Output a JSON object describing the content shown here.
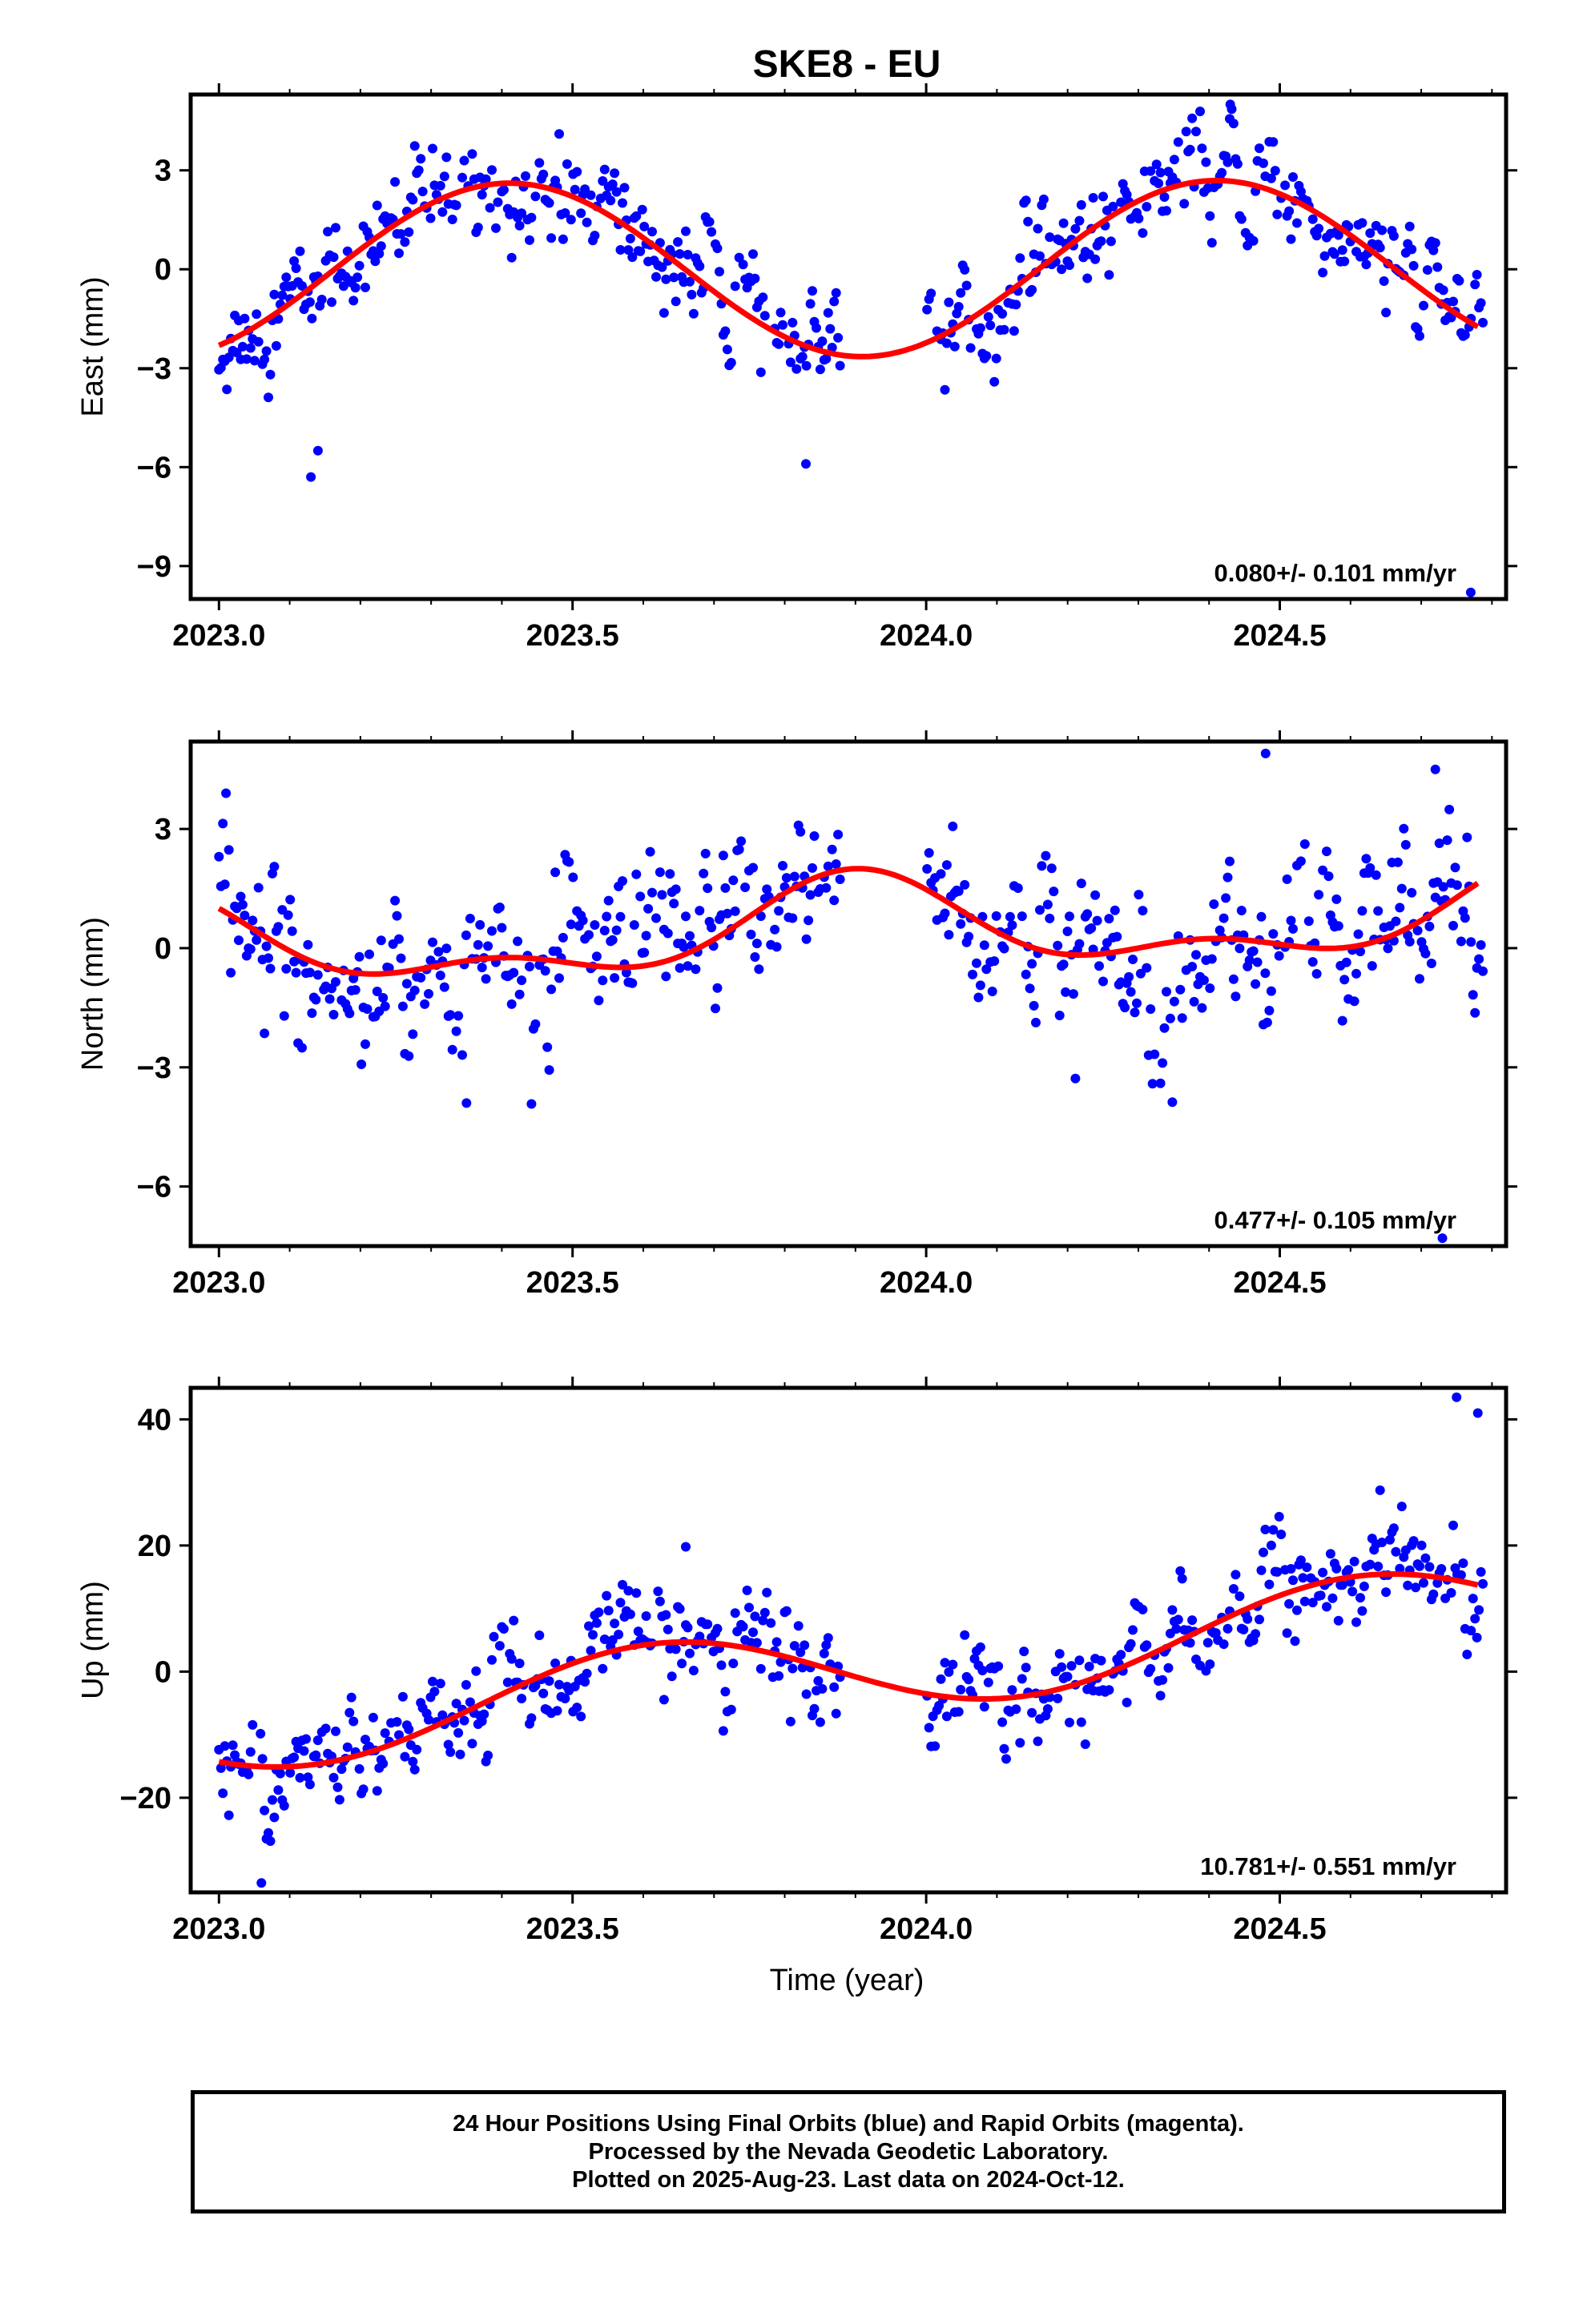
{
  "figure": {
    "title": "SKE8 - EU",
    "xlabel": "Time (year)"
  },
  "caption": {
    "line1": "24 Hour Positions Using Final Orbits (blue) and Rapid Orbits (magenta).",
    "line2": "Processed by the Nevada Geodetic Laboratory.",
    "line3": "Plotted on 2025-Aug-23. Last data on 2024-Oct-12."
  },
  "colors": {
    "points": "#0000ff",
    "fit": "#ff0000",
    "axes": "#000000"
  },
  "chart_data": [
    {
      "type": "scatter",
      "ylabel": "East (mm)",
      "rate_label": "0.080+/- 0.101 mm/yr",
      "xlim": [
        2022.96,
        2024.82
      ],
      "ylim": [
        -10.0,
        5.3
      ],
      "xticks": [
        2023.0,
        2023.5,
        2024.0,
        2024.5
      ],
      "xtick_labels": [
        "2023.0",
        "2023.5",
        "2024.0",
        "2024.5"
      ],
      "yticks": [
        3,
        0,
        -3,
        -6,
        -9
      ],
      "ytick_labels": [
        "3",
        "0",
        "−3",
        "−6",
        "−9"
      ],
      "gap": [
        2023.88,
        2024.0
      ],
      "fit": {
        "mean": 0.0,
        "trend": 0.08,
        "amp": 2.65,
        "peak": 2023.41,
        "amp2": 0.0,
        "peak2": 2023.0
      },
      "noise_sd": 0.85,
      "series": [
        {
          "name": "Final Orbits (blue)",
          "points": "daily",
          "count_approx": 640
        },
        {
          "name": "fit",
          "style": "line"
        }
      ],
      "notable_points": [
        [
          2023.13,
          -6.3
        ],
        [
          2023.14,
          -5.5
        ],
        [
          2024.77,
          -9.8
        ],
        [
          2024.43,
          5.0
        ],
        [
          2023.83,
          -5.9
        ]
      ]
    },
    {
      "type": "scatter",
      "ylabel": "North (mm)",
      "rate_label": "0.477+/- 0.105 mm/yr",
      "xlim": [
        2022.96,
        2024.82
      ],
      "ylim": [
        -7.5,
        5.2
      ],
      "xticks": [
        2023.0,
        2023.5,
        2024.0,
        2024.5
      ],
      "xtick_labels": [
        "2023.0",
        "2023.5",
        "2024.0",
        "2024.5"
      ],
      "yticks": [
        3,
        0,
        -3,
        -6
      ],
      "ytick_labels": [
        "3",
        "0",
        "−3",
        "−6"
      ],
      "gap": [
        2023.88,
        2024.0
      ],
      "fit": {
        "mean": 0.45,
        "trend": 0.477,
        "amp": 1.0,
        "peak": 2023.9,
        "amp2": 0.55,
        "peak2": 2023.4
      },
      "noise_sd": 1.05,
      "series": [
        {
          "name": "Final Orbits (blue)",
          "points": "daily",
          "count_approx": 640
        },
        {
          "name": "fit",
          "style": "line"
        }
      ],
      "notable_points": [
        [
          2023.01,
          3.9
        ],
        [
          2024.48,
          4.9
        ],
        [
          2024.72,
          4.5
        ],
        [
          2023.35,
          -3.9
        ],
        [
          2024.73,
          -7.3
        ]
      ]
    },
    {
      "type": "scatter",
      "ylabel": "Up (mm)",
      "rate_label": "10.781+/- 0.551 mm/yr",
      "xlim": [
        2022.96,
        2024.82
      ],
      "ylim": [
        -35,
        45
      ],
      "xticks": [
        2023.0,
        2023.5,
        2024.0,
        2024.5
      ],
      "xtick_labels": [
        "2023.0",
        "2023.5",
        "2024.0",
        "2024.5"
      ],
      "yticks": [
        40,
        20,
        0,
        -20
      ],
      "ytick_labels": [
        "40",
        "20",
        "0",
        "−20"
      ],
      "gap": [
        2023.88,
        2024.0
      ],
      "fit": {
        "mean": 0.5,
        "trend": 10.78,
        "amp": 7.0,
        "peak": 2023.62,
        "amp2": 0.0,
        "peak2": 2023.0
      },
      "noise_sd": 4.5,
      "series": [
        {
          "name": "Final Orbits (blue)",
          "points": "daily",
          "count_approx": 640
        },
        {
          "name": "fit",
          "style": "line"
        }
      ],
      "notable_points": [
        [
          2023.06,
          -33.5
        ],
        [
          2024.75,
          43.5
        ],
        [
          2024.78,
          41.0
        ],
        [
          2023.66,
          19.8
        ]
      ]
    }
  ]
}
